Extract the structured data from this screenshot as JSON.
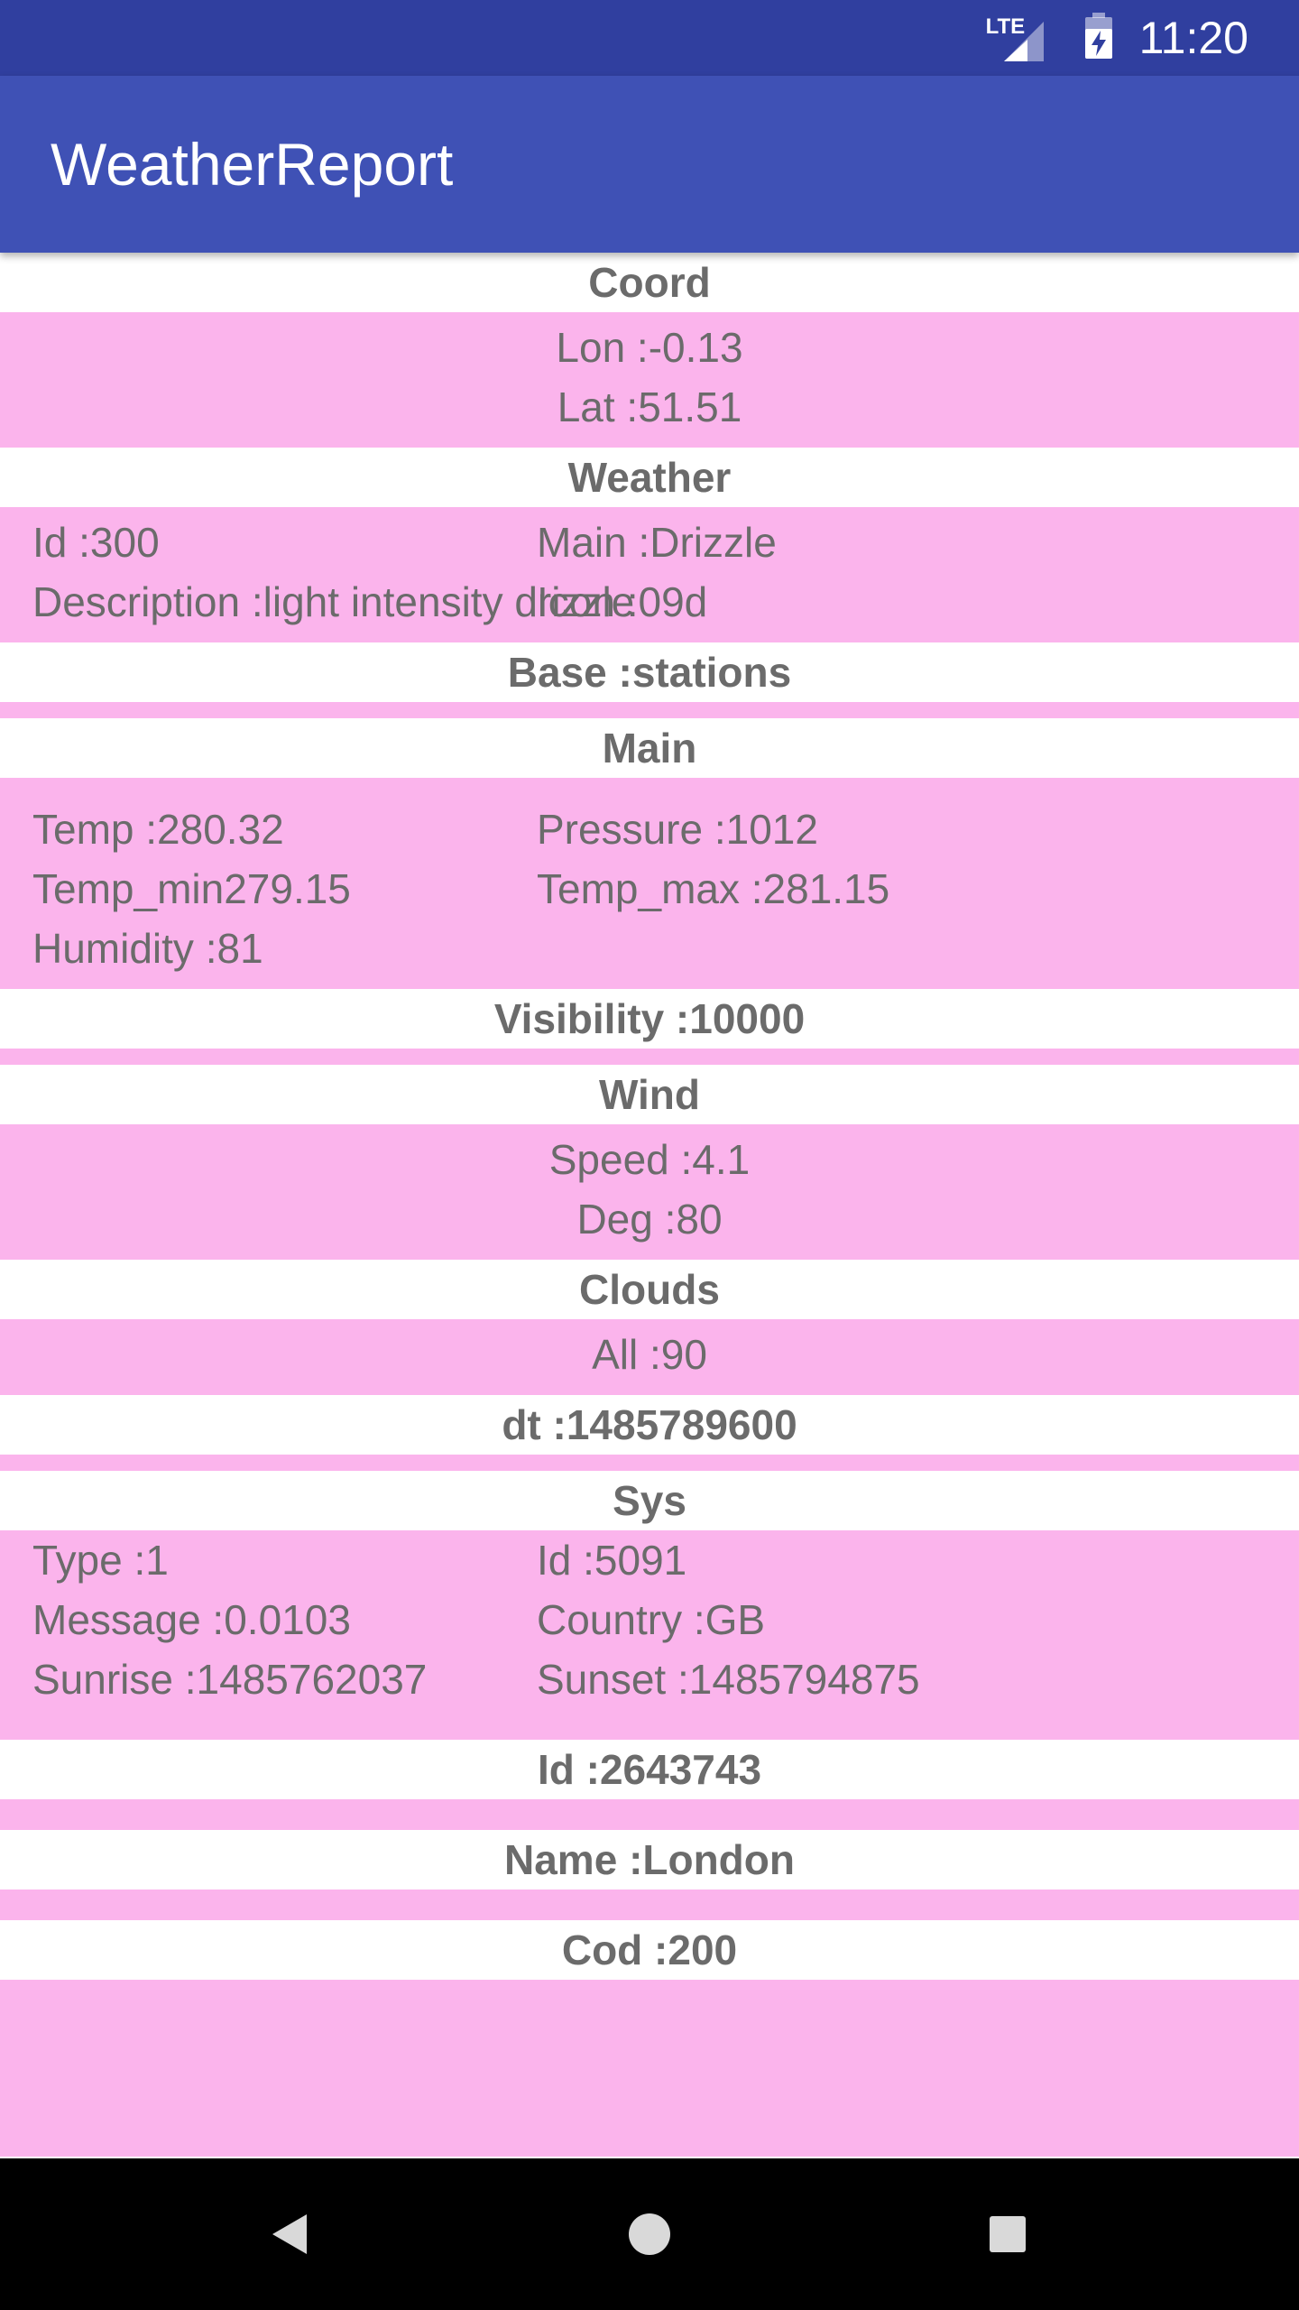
{
  "status_bar": {
    "time": "11:20",
    "network_label": "LTE"
  },
  "app_bar": {
    "title": "WeatherReport"
  },
  "coord": {
    "header": "Coord",
    "lon": "Lon :-0.13",
    "lat": "Lat :51.51"
  },
  "weather": {
    "header": "Weather",
    "id": "Id :300",
    "main": "Main :Drizzle",
    "description": "Description :light intensity drizzle",
    "icon": "Icon :09d"
  },
  "base": {
    "header": "Base :stations"
  },
  "main": {
    "header": "Main",
    "temp": "Temp :280.32",
    "pressure": "Pressure :1012",
    "temp_min": "Temp_min279.15",
    "temp_max": "Temp_max :281.15",
    "humidity": "Humidity :81"
  },
  "visibility": {
    "header": "Visibility :10000"
  },
  "wind": {
    "header": "Wind",
    "speed": "Speed :4.1",
    "deg": "Deg :80"
  },
  "clouds": {
    "header": "Clouds",
    "all": "All :90"
  },
  "dt": {
    "header": "dt :1485789600"
  },
  "sys": {
    "header": "Sys",
    "type": "Type :1",
    "id": "Id :5091",
    "message": "Message :0.0103",
    "country": "Country :GB",
    "sunrise": "Sunrise :1485762037",
    "sunset": "Sunset :1485794875"
  },
  "city_id": {
    "header": "Id :2643743"
  },
  "name": {
    "header": "Name :London"
  },
  "cod": {
    "header": "Cod :200"
  },
  "nav_bar": {
    "back_icon": "back-triangle",
    "home_icon": "home-circle",
    "recents_icon": "recents-square"
  },
  "colors": {
    "status_bar": "#303f9f",
    "app_bar": "#3f51b5",
    "section_bg": "#fbb4ec",
    "nav_bar": "#000000"
  }
}
